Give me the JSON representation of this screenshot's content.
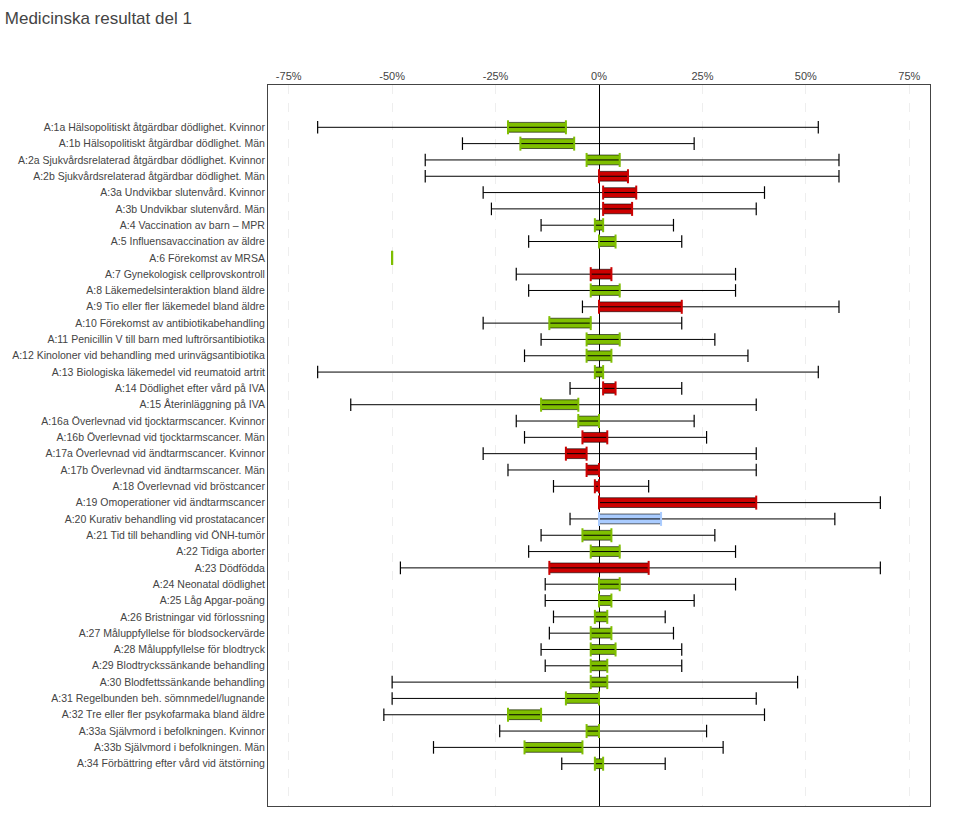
{
  "chart_data": {
    "type": "bar",
    "title": "Medicinska resultat del 1",
    "orientation": "horizontal",
    "categories": [
      "A:1a Hälsopolitiskt åtgärdbar dödlighet. Kvinnor",
      "A:1b Hälsopolitiskt åtgärdbar dödlighet. Män",
      "A:2a Sjukvårdsrelaterad åtgärdbar dödlighet. Kvinnor",
      "A:2b Sjukvårdsrelaterad åtgärdbar dödlighet. Män",
      "A:3a Undvikbar slutenvård. Kvinnor",
      "A:3b Undvikbar slutenvård. Män",
      "A:4 Vaccination av barn – MPR",
      "A:5 Influensavaccination av äldre",
      "A:6 Förekomst av MRSA",
      "A:7 Gynekologisk cellprovskontroll",
      "A:8 Läkemedelsinteraktion bland äldre",
      "A:9 Tio eller fler läkemedel bland äldre",
      "A:10 Förekomst av antibiotikabehandling",
      "A:11 Penicillin V till barn med luftrörsantibiotika",
      "A:12 Kinoloner vid behandling med urinvägsantibiotika",
      "A:13 Biologiska läkemedel vid reumatoid artrit",
      "A:14 Dödlighet efter vård på IVA",
      "A:15 Återinläggning på IVA",
      "A:16a Överlevnad vid tjocktarmscancer. Kvinnor",
      "A:16b Överlevnad vid tjocktarmscancer. Män",
      "A:17a Överlevnad vid ändtarmscancer. Kvinnor",
      "A:17b Överlevnad vid ändtarmscancer. Män",
      "A:18 Överlevnad vid bröstcancer",
      "A:19 Omoperationer vid ändtarmscancer",
      "A:20 Kurativ behandling vid prostatacancer",
      "A:21 Tid till behandling vid ÖNH-tumör",
      "A:22 Tidiga aborter",
      "A:23 Dödfödda",
      "A:24 Neonatal dödlighet",
      "A:25 Låg Apgar-poäng",
      "A:26 Bristningar vid förlossning",
      "A:27 Måluppfyllelse för blodsockervärde",
      "A:28 Måluppfyllelse för blodtryck",
      "A:29 Blodtryckssänkande behandling",
      "A:30 Blodfettssänkande behandling",
      "A:31 Regelbunden beh. sömnmedel/lugnande",
      "A:32 Tre eller fler psykofarmaka bland äldre",
      "A:33a Självmord i befolkningen. Kvinnor",
      "A:33b Självmord i befolkningen. Män",
      "A:34 Förbättring efter vård vid ätstörning"
    ],
    "bar_left": [
      -22,
      -19,
      -3,
      0,
      1,
      1,
      -1,
      0,
      -50,
      -2,
      -2,
      0,
      -12,
      -3,
      -3,
      -1,
      1,
      -14,
      -5,
      -4,
      -8,
      -3,
      -1,
      0,
      0,
      -4,
      -2,
      -12,
      0,
      0,
      -1,
      -2,
      -2,
      -2,
      -2,
      -8,
      -22,
      -3,
      -18,
      -1
    ],
    "bar_right": [
      -8,
      -6,
      5,
      7,
      9,
      8,
      1,
      4,
      -50,
      3,
      5,
      20,
      -2,
      5,
      3,
      1,
      4,
      -5,
      0,
      2,
      -3,
      0,
      0,
      38,
      15,
      3,
      5,
      12,
      5,
      3,
      2,
      3,
      4,
      2,
      2,
      0,
      -14,
      0,
      -4,
      1
    ],
    "whisker_left": [
      -68,
      -33,
      -42,
      -42,
      -28,
      -26,
      -14,
      -17,
      -50,
      -20,
      -17,
      -4,
      -28,
      -14,
      -18,
      -68,
      -7,
      -60,
      -20,
      -18,
      -28,
      -22,
      -11,
      0,
      -7,
      -14,
      -17,
      -48,
      -13,
      -13,
      -11,
      -12,
      -14,
      -13,
      -50,
      -50,
      -52,
      -24,
      -40,
      -9
    ],
    "whisker_right": [
      53,
      23,
      58,
      58,
      40,
      38,
      18,
      20,
      -50,
      33,
      33,
      58,
      20,
      28,
      36,
      53,
      20,
      38,
      23,
      26,
      38,
      38,
      12,
      68,
      57,
      28,
      33,
      68,
      33,
      23,
      16,
      18,
      20,
      20,
      48,
      38,
      40,
      26,
      30,
      16
    ],
    "colors": [
      "#7fbf00",
      "#7fbf00",
      "#7fbf00",
      "#cc0000",
      "#cc0000",
      "#cc0000",
      "#7fbf00",
      "#7fbf00",
      "#7fbf00",
      "#cc0000",
      "#7fbf00",
      "#cc0000",
      "#7fbf00",
      "#7fbf00",
      "#7fbf00",
      "#7fbf00",
      "#cc0000",
      "#7fbf00",
      "#7fbf00",
      "#cc0000",
      "#cc0000",
      "#cc0000",
      "#cc0000",
      "#cc0000",
      "#aaccff",
      "#7fbf00",
      "#7fbf00",
      "#cc0000",
      "#7fbf00",
      "#7fbf00",
      "#7fbf00",
      "#7fbf00",
      "#7fbf00",
      "#7fbf00",
      "#7fbf00",
      "#7fbf00",
      "#7fbf00",
      "#7fbf00",
      "#7fbf00",
      "#7fbf00"
    ],
    "xlim": [
      -80,
      80
    ],
    "xticks": [
      {
        "value": -75,
        "label": "-75%"
      },
      {
        "value": -50,
        "label": "-50%"
      },
      {
        "value": -25,
        "label": "-25%"
      },
      {
        "value": 0,
        "label": "0%"
      },
      {
        "value": 25,
        "label": "25%"
      },
      {
        "value": 50,
        "label": "50%"
      },
      {
        "value": 75,
        "label": "75%"
      }
    ],
    "grid": true
  }
}
